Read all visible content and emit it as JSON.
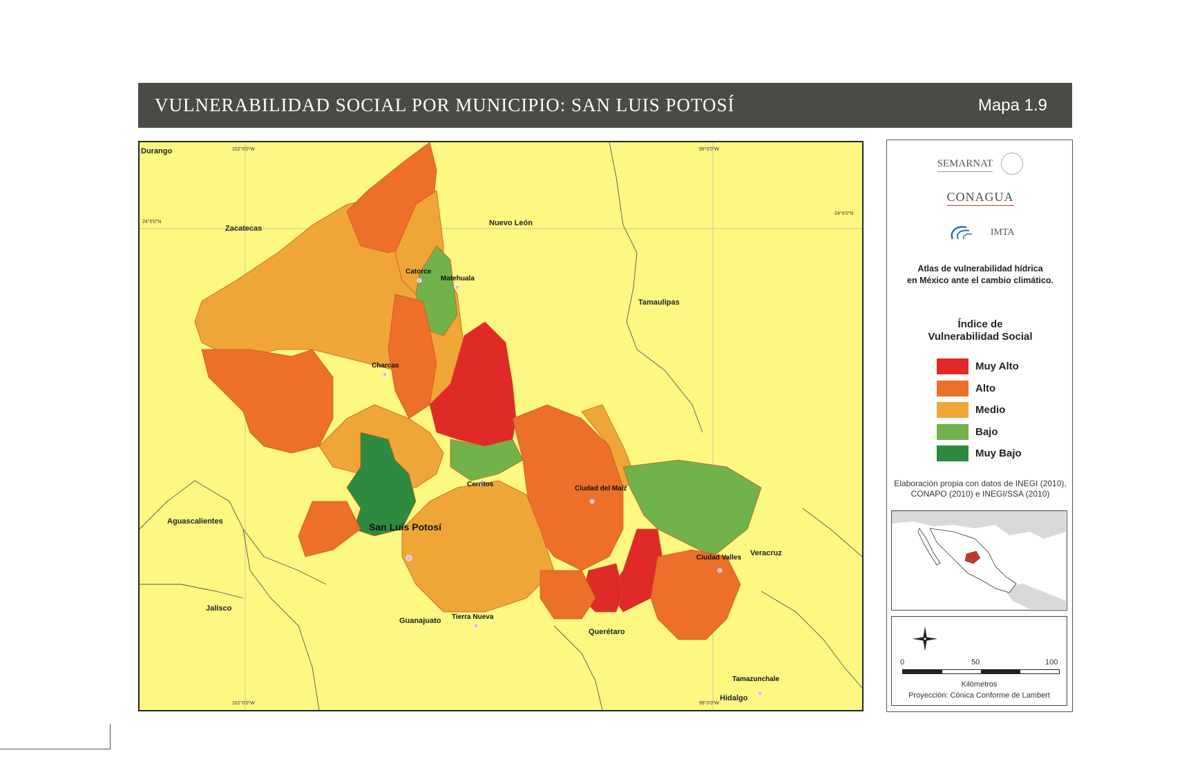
{
  "header": {
    "title": "VULNERABILIDAD SOCIAL POR MUNICIPIO: SAN LUIS POTOSÍ",
    "map_number": "Mapa 1.9"
  },
  "map": {
    "neighbor_states": {
      "durango": "Durango",
      "zacatecas": "Zacatecas",
      "nuevo_leon": "Nuevo León",
      "tamaulipas": "Tamaulipas",
      "aguascalientes": "Aguascalientes",
      "jalisco": "Jalisco",
      "guanajuato": "Guanajuato",
      "queretaro": "Querétaro",
      "veracruz": "Veracruz",
      "hidalgo": "Hidalgo"
    },
    "cities": {
      "catorce": "Catorce",
      "matehuala": "Matehuala",
      "charcas": "Charcas",
      "cerritos": "Cerritos",
      "ciudad_del_maiz": "Ciudad del Maíz",
      "san_luis_potosi": "San Luis Potosí",
      "ciudad_valles": "Ciudad Valles",
      "tierra_nueva": "Tierra Nueva",
      "tamazunchale": "Tamazunchale"
    },
    "graticule": {
      "lon_102": "102°0'0\"W",
      "lon_99": "99°0'0\"W",
      "lat_24_left": "24°0'0\"N",
      "lat_24_right": "24°0'0\"N",
      "lon_102_bottom": "102°0'0\"W",
      "lon_99_bottom": "99°0'0\"W"
    },
    "colors": {
      "muy_alto": "#e02a27",
      "alto": "#ec6f2a",
      "medio": "#f0a637",
      "bajo": "#72b24a",
      "muy_bajo": "#2e8a3e",
      "background": "#fcf882"
    }
  },
  "panel": {
    "logos": {
      "semarnat": "SEMARNAT",
      "conagua": "CONAGUA",
      "imta": "IMTA"
    },
    "atlas_line1": "Atlas de vulnerabilidad hídrica",
    "atlas_line2": "en México ante el cambio climático.",
    "legend_title_line1": "Índice de",
    "legend_title_line2": "Vulnerabilidad Social",
    "legend": [
      {
        "label": "Muy Alto",
        "color": "#e02a27"
      },
      {
        "label": "Alto",
        "color": "#ec6f2a"
      },
      {
        "label": "Medio",
        "color": "#f0a637"
      },
      {
        "label": "Bajo",
        "color": "#72b24a"
      },
      {
        "label": "Muy Bajo",
        "color": "#2e8a3e"
      }
    ],
    "source_line1": "Elaboración propia con datos de INEGI (2010),",
    "source_line2": "CONAPO (2010) e INEGI/SSA (2010)",
    "scale": {
      "ticks": [
        "0",
        "50",
        "100"
      ],
      "unit": "Kilómetros",
      "projection": "Proyección: Cónica Conforme de Lambert"
    }
  }
}
